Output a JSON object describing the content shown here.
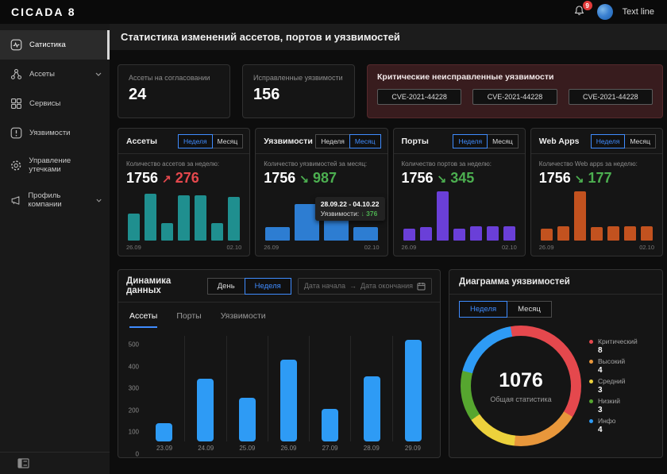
{
  "topbar": {
    "logo": "CICADA 8",
    "notification_count": "9",
    "user_name": "Text line"
  },
  "sidebar": {
    "items": [
      {
        "label": "Сатистика"
      },
      {
        "label": "Ассеты"
      },
      {
        "label": "Сервисы"
      },
      {
        "label": "Уязвимости"
      },
      {
        "label": "Управление утечками"
      },
      {
        "label": "Профиль компании"
      }
    ]
  },
  "header": {
    "title": "Статистика изменений ассетов, портов и уязвимостей"
  },
  "summary_cards": [
    {
      "label": "Ассеты на согласовании",
      "value": "24"
    },
    {
      "label": "Исправленные уязвимости",
      "value": "156"
    }
  ],
  "critical_card": {
    "title": "Критические неисправленные уязвимости",
    "cves": [
      "CVE-2021-44228",
      "CVE-2021-44228",
      "CVE-2021-44228"
    ]
  },
  "mini_cards": [
    {
      "title": "Ассеты",
      "toggle": {
        "options": [
          "Неделя",
          "Месяц"
        ],
        "active": 0
      },
      "subtitle": "Количество ассетов за неделю:",
      "total": "1756",
      "arrow": "↗",
      "delta": "276",
      "delta_color": "#e5484d",
      "date_start": "26.09",
      "date_end": "02.10"
    },
    {
      "title": "Уязвимости",
      "toggle": {
        "options": [
          "Неделя",
          "Месяц"
        ],
        "active": 1
      },
      "subtitle": "Количество уязвимостей за месяц:",
      "total": "1756",
      "arrow": "↘",
      "delta": "987",
      "delta_color": "#4caf50",
      "date_start": "26.09",
      "date_end": "02.10",
      "tooltip": {
        "range": "28.09.22 - 04.10.22",
        "label": "Уязвимости:",
        "arrow": "↓",
        "value": "376"
      }
    },
    {
      "title": "Порты",
      "toggle": {
        "options": [
          "Неделя",
          "Месяц"
        ],
        "active": 0
      },
      "subtitle": "Количество портов за неделю:",
      "total": "1756",
      "arrow": "↘",
      "delta": "345",
      "delta_color": "#4caf50",
      "date_start": "26.09",
      "date_end": "02.10"
    },
    {
      "title": "Web Apps",
      "toggle": {
        "options": [
          "Неделя",
          "Месяц"
        ],
        "active": 0
      },
      "subtitle": "Количество Web apps за неделю:",
      "total": "1756",
      "arrow": "↘",
      "delta": "177",
      "delta_color": "#4caf50",
      "date_start": "26.09",
      "date_end": "02.10"
    }
  ],
  "dynamics": {
    "title": "Динамика данных",
    "toggle": {
      "options": [
        "День",
        "Неделя"
      ],
      "active": 1
    },
    "date_from_placeholder": "Дата начала",
    "range_arrow": "→",
    "date_to_placeholder": "Дата окончания",
    "tabs": [
      {
        "label": "Ассеты",
        "active": true
      },
      {
        "label": "Порты",
        "active": false
      },
      {
        "label": "Уязвимости",
        "active": false
      }
    ]
  },
  "diagram": {
    "title": "Диаграмма уязвимостей",
    "toggle": {
      "options": [
        "Неделя",
        "Месяц"
      ],
      "active": 0
    },
    "center_value": "1076",
    "center_label": "Общая статистика",
    "legend": [
      {
        "label": "Критический",
        "value": 8,
        "color": "#e5484d"
      },
      {
        "label": "Высокий",
        "value": 4,
        "color": "#e8973b"
      },
      {
        "label": "Средний",
        "value": 3,
        "color": "#ecd13c"
      },
      {
        "label": "Низкий",
        "value": 3,
        "color": "#56a62f"
      },
      {
        "label": "Инфо",
        "value": 4,
        "color": "#2e9bf5"
      }
    ]
  },
  "chart_data": [
    {
      "id": "mini-assets",
      "type": "bar",
      "color": "#1f8f8f",
      "x_start": "26.09",
      "x_end": "02.10",
      "relative_heights": [
        55,
        95,
        35,
        92,
        92,
        35,
        88
      ]
    },
    {
      "id": "mini-vulnerabilities",
      "type": "bar",
      "color": "#2d7dd2",
      "x_start": "26.09",
      "x_end": "02.10",
      "relative_heights": [
        28,
        75,
        45,
        28
      ]
    },
    {
      "id": "mini-ports",
      "type": "bar",
      "color": "#6a3fd8",
      "x_start": "26.09",
      "x_end": "02.10",
      "relative_heights": [
        24,
        27,
        100,
        24,
        29,
        29,
        29
      ]
    },
    {
      "id": "mini-webapps",
      "type": "bar",
      "color": "#c2521f",
      "x_start": "26.09",
      "x_end": "02.10",
      "relative_heights": [
        24,
        29,
        100,
        27,
        29,
        29,
        29
      ]
    },
    {
      "id": "dynamics-main",
      "type": "bar",
      "color": "#2e9bf5",
      "categories": [
        "23.09",
        "24.09",
        "25.09",
        "26.09",
        "27.09",
        "28.09",
        "29.09"
      ],
      "values": [
        95,
        320,
        225,
        420,
        165,
        335,
        520
      ],
      "yticks": [
        0,
        100,
        200,
        300,
        400,
        500
      ],
      "ymax": 540
    },
    {
      "id": "vulnerability-donut",
      "type": "pie",
      "title": "Диаграмма уязвимостей",
      "labels": [
        "Критический",
        "Высокий",
        "Средний",
        "Низкий",
        "Инфо"
      ],
      "values": [
        8,
        4,
        3,
        3,
        4
      ],
      "total_label": "1076"
    }
  ]
}
